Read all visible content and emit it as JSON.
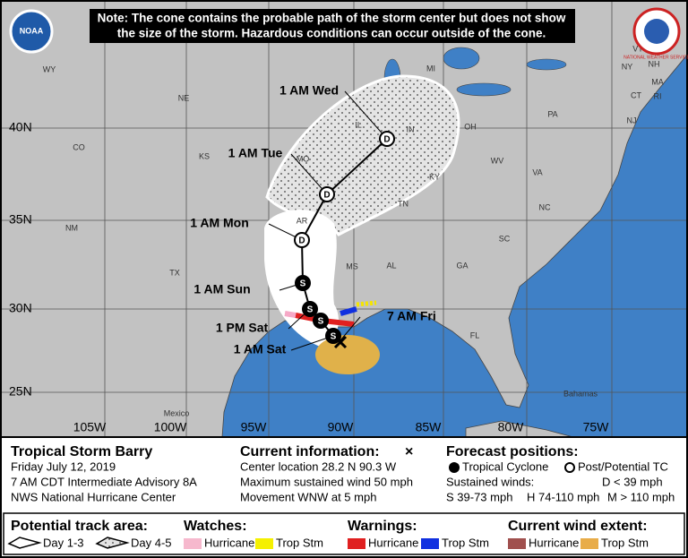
{
  "note": [
    "Note: The cone contains the probable path of the storm center but does not show",
    "the size of the storm. Hazardous conditions can occur outside of the cone."
  ],
  "logos": {
    "left": "NOAA",
    "right": "NATIONAL WEATHER SERVICE"
  },
  "lat_labels": [
    "40N",
    "35N",
    "30N",
    "25N"
  ],
  "lon_labels": [
    "105W",
    "100W",
    "95W",
    "90W",
    "85W",
    "80W",
    "75W"
  ],
  "state_labels": [
    "WY",
    "NE",
    "CO",
    "KS",
    "NM",
    "TX",
    "MO",
    "AR",
    "IL",
    "IN",
    "OH",
    "MI",
    "KY",
    "TN",
    "MS",
    "AL",
    "GA",
    "FL",
    "SC",
    "NC",
    "VA",
    "WV",
    "PA",
    "NY",
    "VT",
    "NH",
    "MA",
    "CT",
    "RI",
    "NJ"
  ],
  "place_labels": [
    "Mexico",
    "Bahamas"
  ],
  "forecast_labels": [
    "1 AM Wed",
    "1 AM Tue",
    "1 AM Mon",
    "1 AM Sun",
    "1 PM Sat",
    "1 AM Sat",
    "7 AM Fri"
  ],
  "markers": [
    "D",
    "D",
    "D",
    "S",
    "S",
    "S",
    "S"
  ],
  "storm": {
    "name": "Tropical Storm Barry",
    "date": "Friday July 12, 2019",
    "advisory": "7 AM CDT Intermediate Advisory 8A",
    "office": "NWS National Hurricane Center"
  },
  "current": {
    "title": "Current information:",
    "symbol": "×",
    "lines": [
      "Center location 28.2 N 90.3 W",
      "Maximum sustained wind 50 mph",
      "Movement WNW at 5 mph"
    ]
  },
  "forecast_positions": {
    "title": "Forecast positions:",
    "tropical": "Tropical Cyclone",
    "post": "Post/Potential TC",
    "winds": "Sustained winds:",
    "d": "D < 39 mph",
    "s": "S 39-73 mph",
    "h": "H 74-110 mph",
    "m": "M > 110 mph"
  },
  "legend": {
    "track": "Potential track area:",
    "day13": "Day 1-3",
    "day45": "Day 4-5",
    "watches": "Watches:",
    "watch_hurricane": "Hurricane",
    "watch_tropstm": "Trop Stm",
    "warnings": "Warnings:",
    "warn_hurricane": "Hurricane",
    "warn_tropstm": "Trop Stm",
    "wind": "Current wind extent:",
    "wind_hurricane": "Hurricane",
    "wind_tropstm": "Trop Stm"
  }
}
